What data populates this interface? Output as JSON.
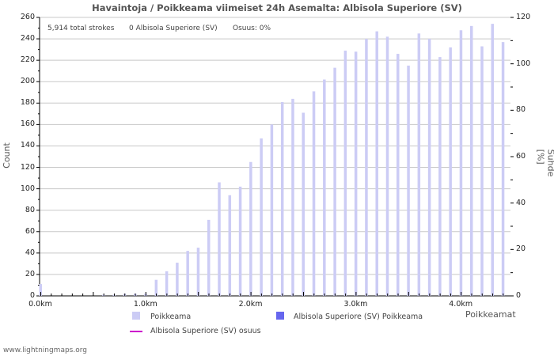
{
  "title": "Havaintoja / Poikkeama viimeiset 24h Asemalta: Albisola Superiore (SV)",
  "stats": {
    "total": "5,914 total strokes",
    "station": "0 Albisola Superiore (SV)",
    "share": "Osuus: 0%"
  },
  "axes": {
    "y_left_title": "Count",
    "y_right_title": "Suhde [%]",
    "x_title": "Poikkeamat",
    "y_left_ticks": [
      "0",
      "20",
      "40",
      "60",
      "80",
      "100",
      "120",
      "140",
      "160",
      "180",
      "200",
      "220",
      "240",
      "260"
    ],
    "y_right_ticks": [
      "0",
      "20",
      "40",
      "60",
      "80",
      "100",
      "120"
    ],
    "x_ticks": [
      "0.0km",
      "1.0km",
      "2.0km",
      "3.0km",
      "4.0km"
    ]
  },
  "legend": {
    "items": [
      {
        "label": "Poikkeama",
        "color": "#ccccf5"
      },
      {
        "label": "Albisola Superiore (SV) Poikkeama",
        "color": "#6666ee"
      },
      {
        "label": "Albisola Superiore (SV) osuus",
        "color": "#cc00cc"
      }
    ]
  },
  "credit": "www.lightningmaps.org",
  "chart_data": {
    "type": "bar",
    "title": "Havaintoja / Poikkeama viimeiset 24h Asemalta: Albisola Superiore (SV)",
    "xlabel": "Poikkeamat",
    "ylabel": "Count",
    "y2label": "Suhde [%]",
    "ylim": [
      0,
      260
    ],
    "y2lim": [
      0,
      120
    ],
    "grid": true,
    "legend_position": "bottom",
    "categories": [
      "0.0",
      "0.1",
      "0.2",
      "0.3",
      "0.4",
      "0.5",
      "0.6",
      "0.7",
      "0.8",
      "0.9",
      "1.0",
      "1.1",
      "1.2",
      "1.3",
      "1.4",
      "1.5",
      "1.6",
      "1.7",
      "1.8",
      "1.9",
      "2.0",
      "2.1",
      "2.2",
      "2.3",
      "2.4",
      "2.5",
      "2.6",
      "2.7",
      "2.8",
      "2.9",
      "3.0",
      "3.1",
      "3.2",
      "3.3",
      "3.4",
      "3.5",
      "3.6",
      "3.7",
      "3.8",
      "3.9",
      "4.0",
      "4.1",
      "4.2",
      "4.3",
      "4.4"
    ],
    "series": [
      {
        "name": "Poikkeama",
        "values": [
          11,
          0,
          0,
          0,
          0,
          0,
          1,
          1,
          2,
          2,
          2,
          15,
          23,
          31,
          42,
          45,
          71,
          106,
          94,
          102,
          125,
          147,
          160,
          181,
          184,
          171,
          191,
          202,
          213,
          229,
          228,
          240,
          247,
          242,
          226,
          215,
          245,
          240,
          223,
          232,
          248,
          252,
          233,
          254,
          237
        ]
      },
      {
        "name": "Albisola Superiore (SV) Poikkeama",
        "values": [
          0,
          0,
          0,
          0,
          0,
          0,
          0,
          0,
          0,
          0,
          0,
          0,
          0,
          0,
          0,
          0,
          0,
          0,
          0,
          0,
          0,
          0,
          0,
          0,
          0,
          0,
          0,
          0,
          0,
          0,
          0,
          0,
          0,
          0,
          0,
          0,
          0,
          0,
          0,
          0,
          0,
          0,
          0,
          0,
          0
        ]
      },
      {
        "name": "Albisola Superiore (SV) osuus",
        "values": [
          0,
          0,
          0,
          0,
          0,
          0,
          0,
          0,
          0,
          0,
          0,
          0,
          0,
          0,
          0,
          0,
          0,
          0,
          0,
          0,
          0,
          0,
          0,
          0,
          0,
          0,
          0,
          0,
          0,
          0,
          0,
          0,
          0,
          0,
          0,
          0,
          0,
          0,
          0,
          0,
          0,
          0,
          0,
          0,
          0
        ]
      }
    ]
  }
}
